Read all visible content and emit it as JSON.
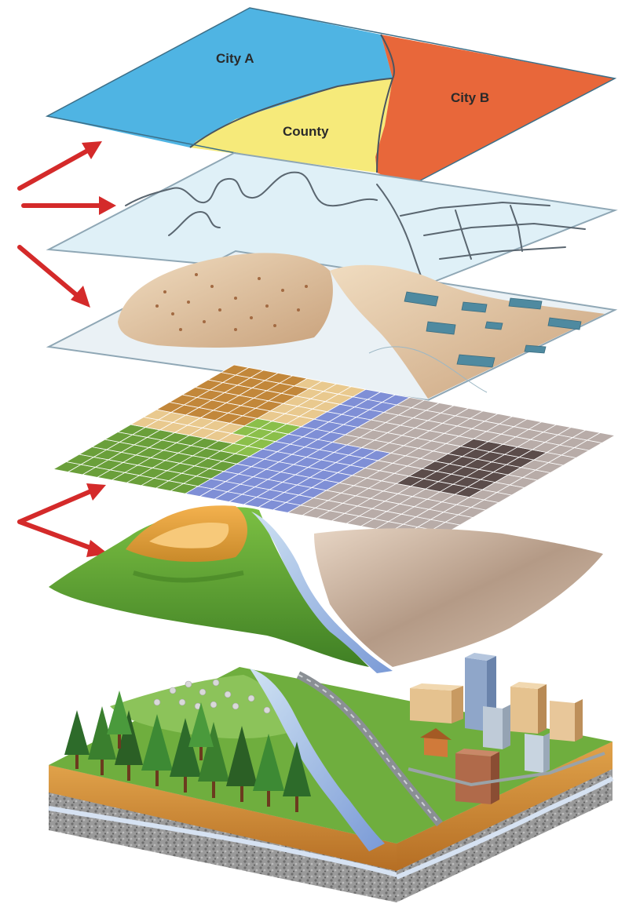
{
  "layers": {
    "political": {
      "labels": [
        "City A",
        "County",
        "City B"
      ],
      "colors": {
        "city_a": "#4fb4e3",
        "county": "#f6ea7a",
        "city_b": "#e8673a"
      }
    },
    "vector_sheet": {
      "color": "#dff0f7"
    },
    "raster_grid": {
      "colors": [
        "#6a9f3a",
        "#8bbf4a",
        "#c2873a",
        "#e9c98e",
        "#7f8fd6",
        "#b8aca8",
        "#5b4c4a"
      ]
    }
  },
  "arrows": {
    "color": "#d42a2a"
  },
  "icons": [
    "arrow-icon",
    "tree-icon",
    "building-icon",
    "river-icon"
  ]
}
